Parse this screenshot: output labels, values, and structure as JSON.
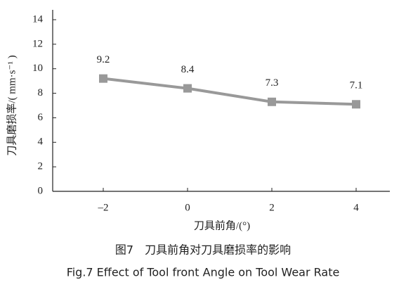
{
  "chart_data": {
    "type": "line",
    "ylabel": "刀具磨损率/( mm·s⁻¹ )",
    "xlabel": "刀具前角/(°)",
    "caption_cn": "图7　刀具前角对刀具磨损率的影响",
    "caption_en": "Fig.7  Effect of Tool front Angle on Tool Wear Rate",
    "x": [
      -2,
      0,
      2,
      4
    ],
    "series": [
      {
        "color": "#999999",
        "values": [
          9.2,
          8.4,
          7.3,
          7.1
        ]
      }
    ],
    "xlim": [
      -3.2,
      4.8
    ],
    "xticks": [
      {
        "value": -2,
        "label": "–2"
      },
      0,
      2,
      4
    ],
    "ylim": [
      0,
      14
    ],
    "yticks": [
      0,
      2,
      4,
      6,
      8,
      10,
      12,
      14
    ],
    "grid": false
  }
}
